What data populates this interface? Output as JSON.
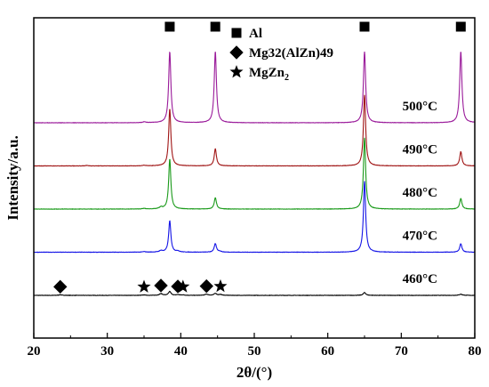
{
  "chart_data": {
    "type": "line",
    "xlabel": "2θ/(°)",
    "ylabel": "Intensity/a.u.",
    "xlim": [
      20,
      80
    ],
    "xticks": [
      20,
      30,
      40,
      50,
      60,
      70,
      80
    ],
    "yticks_shown": false,
    "grid": false,
    "legend": {
      "placement": "top-center",
      "entries": [
        {
          "marker": "square",
          "label": "Al"
        },
        {
          "marker": "diamond",
          "label": "Mg32(AlZn)49"
        },
        {
          "marker": "star",
          "label": "MgZn",
          "subscript": "2"
        }
      ]
    },
    "series": [
      {
        "name": "460°C",
        "color": "#000000",
        "baseline": 0.0,
        "noise": 0.012,
        "peaks": [
          {
            "x": 23.6,
            "h": 0.04,
            "w": 0.25
          },
          {
            "x": 35.0,
            "h": 0.03,
            "w": 0.25
          },
          {
            "x": 37.3,
            "h": 0.12,
            "w": 0.25
          },
          {
            "x": 38.5,
            "h": 0.27,
            "w": 0.2
          },
          {
            "x": 39.6,
            "h": 0.05,
            "w": 0.25
          },
          {
            "x": 40.3,
            "h": 0.03,
            "w": 0.25
          },
          {
            "x": 43.5,
            "h": 0.08,
            "w": 0.25
          },
          {
            "x": 44.7,
            "h": 0.14,
            "w": 0.2
          },
          {
            "x": 45.4,
            "h": 0.06,
            "w": 0.25
          },
          {
            "x": 65.0,
            "h": 0.2,
            "w": 0.2
          },
          {
            "x": 78.1,
            "h": 0.08,
            "w": 0.25
          }
        ]
      },
      {
        "name": "470°C",
        "color": "#1414e6",
        "baseline": 1.0,
        "noise": 0.012,
        "peaks": [
          {
            "x": 35.0,
            "h": 0.04,
            "w": 0.25
          },
          {
            "x": 37.3,
            "h": 0.1,
            "w": 0.25
          },
          {
            "x": 38.5,
            "h": 2.2,
            "w": 0.18
          },
          {
            "x": 39.6,
            "h": 0.07,
            "w": 0.25
          },
          {
            "x": 44.7,
            "h": 0.6,
            "w": 0.18
          },
          {
            "x": 45.3,
            "h": 0.06,
            "w": 0.25
          },
          {
            "x": 65.0,
            "h": 5.0,
            "w": 0.18
          },
          {
            "x": 78.1,
            "h": 0.6,
            "w": 0.18
          }
        ]
      },
      {
        "name": "480°C",
        "color": "#1a9a1a",
        "baseline": 2.0,
        "noise": 0.012,
        "peaks": [
          {
            "x": 35.0,
            "h": 0.04,
            "w": 0.25
          },
          {
            "x": 37.3,
            "h": 0.12,
            "w": 0.25
          },
          {
            "x": 38.5,
            "h": 3.5,
            "w": 0.18
          },
          {
            "x": 44.7,
            "h": 0.8,
            "w": 0.18
          },
          {
            "x": 65.0,
            "h": 5.0,
            "w": 0.18
          },
          {
            "x": 78.1,
            "h": 0.75,
            "w": 0.18
          }
        ]
      },
      {
        "name": "490°C",
        "color": "#a01515",
        "baseline": 3.0,
        "noise": 0.012,
        "peaks": [
          {
            "x": 27.2,
            "h": 0.03,
            "w": 0.25
          },
          {
            "x": 35.0,
            "h": 0.04,
            "w": 0.25
          },
          {
            "x": 38.5,
            "h": 4.0,
            "w": 0.18
          },
          {
            "x": 44.7,
            "h": 1.2,
            "w": 0.18
          },
          {
            "x": 65.0,
            "h": 5.0,
            "w": 0.18
          },
          {
            "x": 78.1,
            "h": 1.0,
            "w": 0.18
          }
        ]
      },
      {
        "name": "500°C",
        "color": "#9a1a9a",
        "baseline": 4.0,
        "noise": 0.012,
        "peaks": [
          {
            "x": 35.0,
            "h": 0.06,
            "w": 0.25
          },
          {
            "x": 38.5,
            "h": 5.0,
            "w": 0.18
          },
          {
            "x": 44.7,
            "h": 5.0,
            "w": 0.18
          },
          {
            "x": 65.0,
            "h": 5.0,
            "w": 0.18
          },
          {
            "x": 78.1,
            "h": 5.0,
            "w": 0.18
          }
        ]
      }
    ],
    "phase_markers": [
      {
        "phase": "Al",
        "marker": "square",
        "x": 38.5,
        "series": "500°C"
      },
      {
        "phase": "Al",
        "marker": "square",
        "x": 44.7,
        "series": "500°C"
      },
      {
        "phase": "Al",
        "marker": "square",
        "x": 65.0,
        "series": "500°C"
      },
      {
        "phase": "Al",
        "marker": "square",
        "x": 78.1,
        "series": "500°C"
      },
      {
        "phase": "Mg32(AlZn)49",
        "marker": "diamond",
        "x": 23.6,
        "series": "460°C"
      },
      {
        "phase": "Mg32(AlZn)49",
        "marker": "diamond",
        "x": 37.3,
        "series": "460°C"
      },
      {
        "phase": "Mg32(AlZn)49",
        "marker": "diamond",
        "x": 39.6,
        "series": "460°C"
      },
      {
        "phase": "Mg32(AlZn)49",
        "marker": "diamond",
        "x": 43.5,
        "series": "460°C"
      },
      {
        "phase": "MgZn2",
        "marker": "star",
        "x": 35.0,
        "series": "460°C"
      },
      {
        "phase": "MgZn2",
        "marker": "star",
        "x": 40.3,
        "series": "460°C"
      },
      {
        "phase": "MgZn2",
        "marker": "star",
        "x": 45.4,
        "series": "460°C"
      }
    ]
  }
}
